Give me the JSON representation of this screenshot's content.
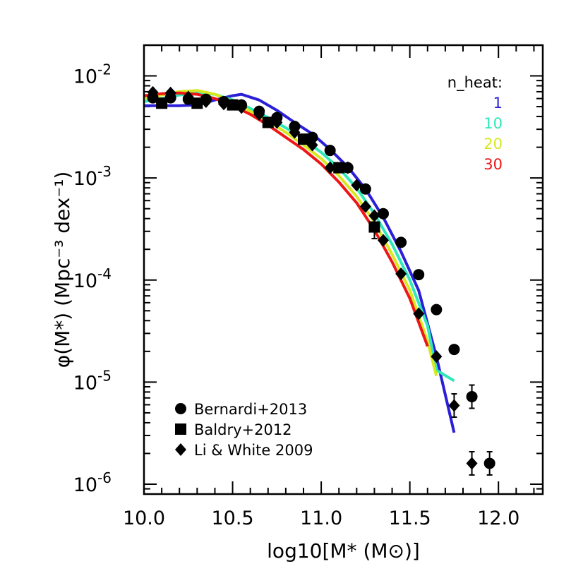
{
  "chart_data": {
    "type": "line",
    "xlabel": "log10[M* (M⊙)]",
    "ylabel": "φ(M*) (Mpc⁻³ dex⁻¹)",
    "xlim": [
      10.0,
      12.25
    ],
    "ylim": [
      8e-07,
      0.02
    ],
    "yscale": "log",
    "x_ticks": [
      {
        "value": 10.0,
        "label": "10.0"
      },
      {
        "value": 10.5,
        "label": "10.5"
      },
      {
        "value": 11.0,
        "label": "11.0"
      },
      {
        "value": 11.5,
        "label": "11.5"
      },
      {
        "value": 12.0,
        "label": "12.0"
      }
    ],
    "y_ticks": [
      {
        "value": 0.01,
        "exp": "-2"
      },
      {
        "value": 0.001,
        "exp": "-3"
      },
      {
        "value": 0.0001,
        "exp": "-4"
      },
      {
        "value": 1e-05,
        "exp": "-5"
      },
      {
        "value": 1e-06,
        "exp": "-6"
      }
    ],
    "legend_title": "n_heat:",
    "series": [
      {
        "name": "1",
        "color": "#2a1fd8",
        "x": [
          10.0,
          10.1,
          10.2,
          10.3,
          10.4,
          10.5,
          10.55,
          10.65,
          10.75,
          10.85,
          10.95,
          11.05,
          11.15,
          11.25,
          11.35,
          11.45,
          11.55,
          11.65,
          11.75
        ],
        "y": [
          0.0051,
          0.0051,
          0.0051,
          0.0052,
          0.0058,
          0.0064,
          0.0066,
          0.0058,
          0.0046,
          0.0035,
          0.0027,
          0.0019,
          0.00128,
          0.00078,
          0.00041,
          0.00019,
          7.91e-05,
          1.78e-05,
          3.2e-06
        ]
      },
      {
        "name": "10",
        "color": "#2ee8b8",
        "x": [
          10.0,
          10.1,
          10.2,
          10.3,
          10.4,
          10.5,
          10.6,
          10.7,
          10.8,
          10.9,
          11.0,
          11.1,
          11.2,
          11.3,
          11.4,
          11.5,
          11.6,
          11.65,
          11.75
        ],
        "y": [
          0.0056,
          0.006,
          0.0065,
          0.0068,
          0.0066,
          0.0058,
          0.0048,
          0.0039,
          0.0031,
          0.0024,
          0.00178,
          0.00125,
          0.000794,
          0.000447,
          0.000224,
          0.0001,
          3.55e-05,
          1.31e-05,
          1.03e-05
        ]
      },
      {
        "name": "20",
        "color": "#d8e81e",
        "x": [
          10.0,
          10.1,
          10.2,
          10.3,
          10.4,
          10.5,
          10.6,
          10.7,
          10.8,
          10.9,
          11.0,
          11.1,
          11.2,
          11.3,
          11.4,
          11.5,
          11.6,
          11.65
        ],
        "y": [
          0.006,
          0.0065,
          0.007,
          0.0072,
          0.0066,
          0.0056,
          0.0045,
          0.0036,
          0.0028,
          0.0021,
          0.00155,
          0.00105,
          0.00066,
          0.00037,
          0.000178,
          7.94e-05,
          2.51e-05,
          1.15e-05
        ]
      },
      {
        "name": "30",
        "color": "#ee1616",
        "x": [
          10.0,
          10.1,
          10.2,
          10.3,
          10.4,
          10.5,
          10.6,
          10.7,
          10.8,
          10.9,
          11.0,
          11.1,
          11.2,
          11.3,
          11.4,
          11.5,
          11.6
        ],
        "y": [
          0.0064,
          0.0067,
          0.0068,
          0.0066,
          0.006,
          0.0051,
          0.0042,
          0.0033,
          0.0025,
          0.0019,
          0.00137,
          0.00091,
          0.00057,
          0.00031,
          0.00015,
          6.6e-05,
          2.24e-05
        ]
      }
    ],
    "observations": [
      {
        "name": "Bernardi+2013",
        "marker": "circle",
        "points": [
          [
            10.05,
            0.0061
          ],
          [
            10.15,
            0.0061
          ],
          [
            10.25,
            0.0059
          ],
          [
            10.35,
            0.0059
          ],
          [
            10.45,
            0.0056
          ],
          [
            10.55,
            0.0052
          ],
          [
            10.65,
            0.0045
          ],
          [
            10.75,
            0.0039
          ],
          [
            10.85,
            0.0032
          ],
          [
            10.95,
            0.0025
          ],
          [
            11.05,
            0.00186
          ],
          [
            11.15,
            0.00126
          ],
          [
            11.25,
            0.00078
          ],
          [
            11.35,
            0.000447
          ],
          [
            11.45,
            0.000234
          ],
          [
            11.55,
            0.000113
          ],
          [
            11.65,
            5.13e-05
          ],
          [
            11.75,
            2.09e-05
          ],
          [
            11.85,
            7.2e-06
          ],
          [
            11.95,
            1.6e-06
          ]
        ],
        "errors_at": [
          11.85,
          11.95
        ]
      },
      {
        "name": "Baldry+2012",
        "marker": "square",
        "points": [
          [
            10.1,
            0.0054
          ],
          [
            10.3,
            0.0054
          ],
          [
            10.5,
            0.0052
          ],
          [
            10.7,
            0.0035
          ],
          [
            10.9,
            0.0024
          ],
          [
            11.1,
            0.00126
          ],
          [
            11.3,
            0.000331
          ]
        ],
        "errors_at": [
          11.3
        ]
      },
      {
        "name": "Li & White 2009",
        "marker": "diamond",
        "points": [
          [
            10.05,
            0.0069
          ],
          [
            10.15,
            0.0068
          ],
          [
            10.25,
            0.0062
          ],
          [
            10.35,
            0.0056
          ],
          [
            10.45,
            0.0053
          ],
          [
            10.55,
            0.0049
          ],
          [
            10.65,
            0.0042
          ],
          [
            10.75,
            0.0035
          ],
          [
            10.85,
            0.0028
          ],
          [
            10.95,
            0.0021
          ],
          [
            11.05,
            0.00126
          ],
          [
            11.15,
            0.00126
          ],
          [
            11.2,
            0.00085
          ],
          [
            11.25,
            0.000525
          ],
          [
            11.3,
            0.000427
          ],
          [
            11.35,
            0.000245
          ],
          [
            11.45,
            0.000115
          ],
          [
            11.55,
            4.68e-05
          ],
          [
            11.65,
            1.78e-05
          ],
          [
            11.75,
            5.9e-06
          ],
          [
            11.85,
            1.6e-06
          ]
        ],
        "errors_at": [
          11.75,
          11.85
        ]
      }
    ]
  }
}
